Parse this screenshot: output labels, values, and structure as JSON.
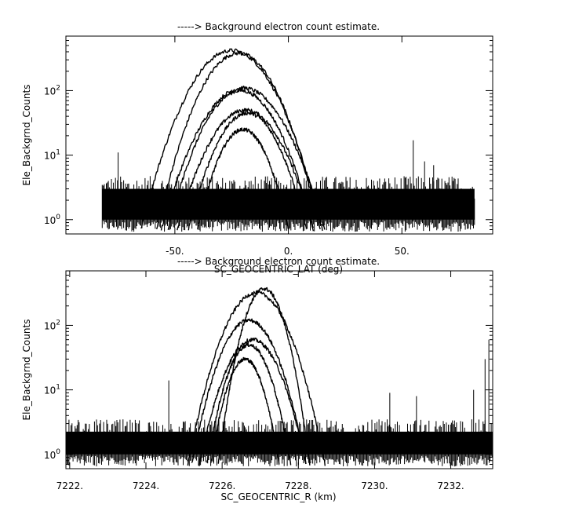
{
  "chart_data": [
    {
      "type": "line",
      "title": "-----> Background electron count estimate.",
      "xlabel": "SC_GEOCENTRIC_LAT (deg)",
      "ylabel": "Ele_Backgrnd_Counts",
      "xlim": [
        -98,
        90
      ],
      "ylim": [
        0.6,
        700
      ],
      "yscale": "log",
      "x_ticks": [
        -50,
        0,
        50
      ],
      "x_tick_labels": [
        "-50.",
        "0.",
        "50."
      ],
      "y_ticks": [
        1,
        10,
        100
      ],
      "y_tick_labels": [
        "10^0",
        "10^1",
        "10^2"
      ],
      "grid": false,
      "background": {
        "x_range": [
          -82,
          82
        ],
        "low": 1,
        "high": 4
      },
      "series": [
        {
          "peak_x": -25,
          "peak_y": 420,
          "halfwidth": 40
        },
        {
          "peak_x": -22,
          "peak_y": 380,
          "halfwidth": 36
        },
        {
          "peak_x": -20,
          "peak_y": 110,
          "halfwidth": 36
        },
        {
          "peak_x": -21,
          "peak_y": 100,
          "halfwidth": 32
        },
        {
          "peak_x": -19,
          "peak_y": 50,
          "halfwidth": 30
        },
        {
          "peak_x": -18,
          "peak_y": 45,
          "halfwidth": 26
        },
        {
          "peak_x": -20,
          "peak_y": 25,
          "halfwidth": 20
        }
      ],
      "spikes": [
        {
          "x": 55,
          "y": 17
        },
        {
          "x": -75,
          "y": 11
        },
        {
          "x": 60,
          "y": 8
        },
        {
          "x": 64,
          "y": 7
        }
      ]
    },
    {
      "type": "line",
      "title": "-----> Background electron count estimate.",
      "xlabel": "SC_GEOCENTRIC_R (km)",
      "ylabel": "Ele_Backgrnd_Counts",
      "xlim": [
        7221.9,
        7233.1
      ],
      "ylim": [
        0.6,
        700
      ],
      "yscale": "log",
      "x_ticks": [
        7222,
        7224,
        7226,
        7228,
        7230,
        7232
      ],
      "x_tick_labels": [
        "7222.",
        "7224.",
        "7226.",
        "7228.",
        "7230.",
        "7232."
      ],
      "y_ticks": [
        1,
        10,
        100
      ],
      "y_tick_labels": [
        "10^0",
        "10^1",
        "10^2"
      ],
      "grid": false,
      "background": {
        "x_range": [
          7221.9,
          7233.1
        ],
        "low": 1,
        "high": 3
      },
      "series": [
        {
          "peak_x": 7227.1,
          "peak_y": 370,
          "halfwidth": 1.2
        },
        {
          "peak_x": 7226.9,
          "peak_y": 320,
          "halfwidth": 1.8
        },
        {
          "peak_x": 7226.7,
          "peak_y": 120,
          "halfwidth": 1.5
        },
        {
          "peak_x": 7226.8,
          "peak_y": 60,
          "halfwidth": 1.4
        },
        {
          "peak_x": 7226.7,
          "peak_y": 50,
          "halfwidth": 1.1
        },
        {
          "peak_x": 7226.6,
          "peak_y": 30,
          "halfwidth": 0.9
        }
      ],
      "spikes": [
        {
          "x": 7224.6,
          "y": 14
        },
        {
          "x": 7230.4,
          "y": 9
        },
        {
          "x": 7231.1,
          "y": 8
        },
        {
          "x": 7232.6,
          "y": 10
        },
        {
          "x": 7232.9,
          "y": 30
        },
        {
          "x": 7233.0,
          "y": 60
        }
      ]
    }
  ]
}
